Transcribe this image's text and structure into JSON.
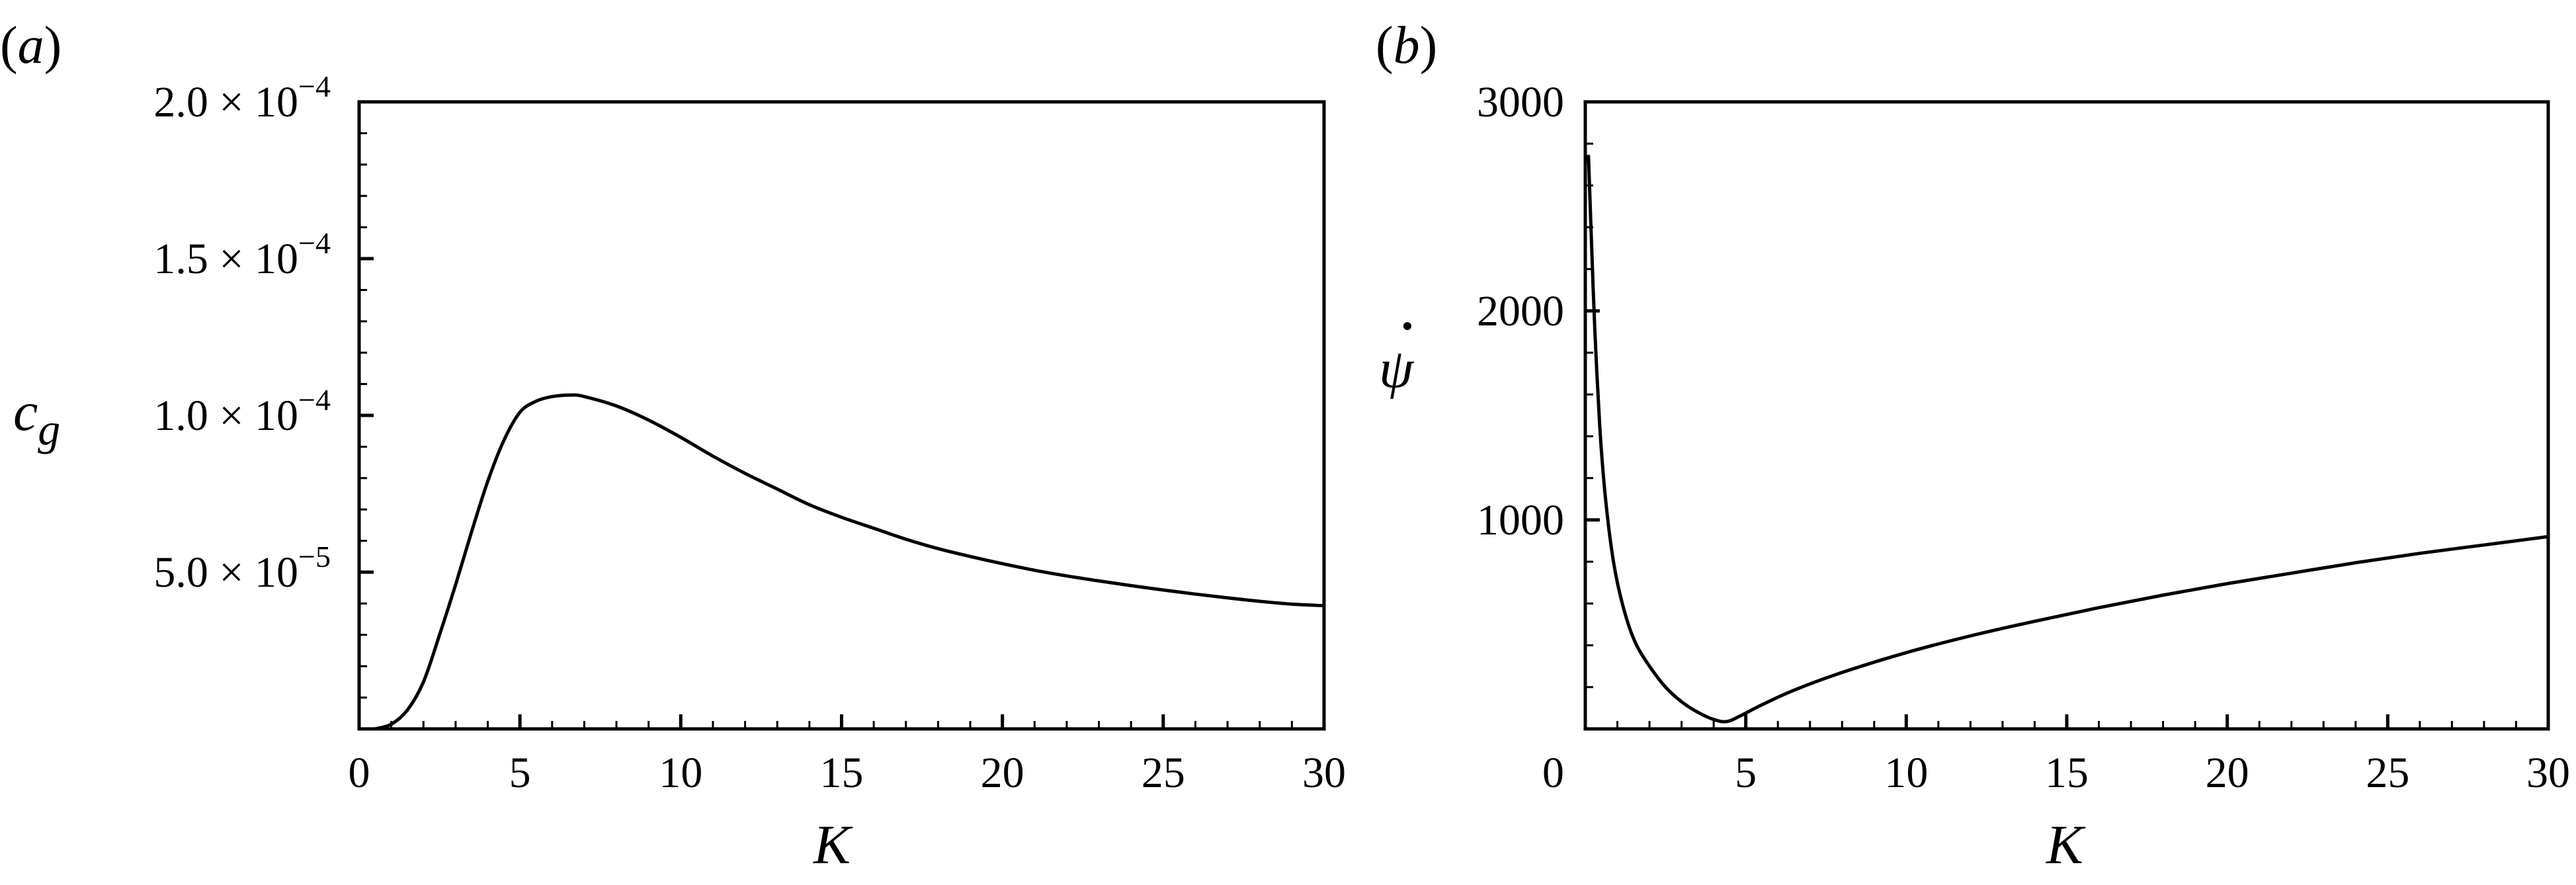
{
  "figure": {
    "panels": [
      {
        "label": "(a)",
        "label_letter": "a",
        "ylabel": "c",
        "ylabel_sub": "g",
        "xlabel": "K",
        "xticks": [
          "0",
          "5",
          "10",
          "15",
          "20",
          "25",
          "30"
        ],
        "yticks": [
          {
            "mant": "5.0",
            "exp": "−5"
          },
          {
            "mant": "1.0",
            "exp": "−4"
          },
          {
            "mant": "1.5",
            "exp": "−4"
          },
          {
            "mant": "2.0",
            "exp": "−4"
          }
        ]
      },
      {
        "label": "(b)",
        "label_letter": "b",
        "ylabel": "ψ",
        "xlabel": "K",
        "xticks": [
          "0",
          "5",
          "10",
          "15",
          "20",
          "25",
          "30"
        ],
        "yticks": [
          "1000",
          "2000",
          "3000"
        ],
        "y_zero_label": "0"
      }
    ]
  },
  "chart_data": [
    {
      "type": "line",
      "panel": "(a)",
      "title": "",
      "xlabel": "K",
      "ylabel": "c_g",
      "xlim": [
        0,
        30
      ],
      "ylim": [
        0,
        0.0002
      ],
      "xticks": [
        0,
        5,
        10,
        15,
        20,
        25,
        30
      ],
      "yticks": [
        5e-05,
        0.0001,
        0.00015,
        0.0002
      ],
      "grid": false,
      "legend": null,
      "series": [
        {
          "name": "c_g",
          "x": [
            0.5,
            1,
            1.5,
            2,
            2.5,
            3,
            3.5,
            4,
            4.5,
            5,
            5.5,
            6,
            6.6,
            7,
            8,
            9,
            10,
            11,
            12,
            13,
            14,
            15,
            16,
            17,
            18,
            19,
            20,
            21,
            22,
            23,
            24,
            25,
            26,
            27,
            28,
            29,
            30
          ],
          "y": [
            0.0,
            1.5e-06,
            6e-06,
            1.5e-05,
            3e-05,
            4.6e-05,
            6.3e-05,
            7.9e-05,
            9.2e-05,
            0.000101,
            0.0001045,
            0.000106,
            0.0001065,
            0.000106,
            0.000103,
            9.85e-05,
            9.3e-05,
            8.7e-05,
            8.15e-05,
            7.65e-05,
            7.15e-05,
            6.75e-05,
            6.4e-05,
            6.05e-05,
            5.75e-05,
            5.5e-05,
            5.27e-05,
            5.06e-05,
            4.88e-05,
            4.72e-05,
            4.57e-05,
            4.43e-05,
            4.3e-05,
            4.18e-05,
            4.07e-05,
            3.98e-05,
            3.93e-05
          ]
        }
      ]
    },
    {
      "type": "line",
      "panel": "(b)",
      "title": "",
      "xlabel": "K",
      "ylabel": "ψ̇ (psi-dot)",
      "xlim": [
        0,
        30
      ],
      "ylim": [
        0,
        3000
      ],
      "xticks": [
        0,
        5,
        10,
        15,
        20,
        25,
        30
      ],
      "yticks": [
        0,
        1000,
        2000,
        3000
      ],
      "grid": false,
      "legend": null,
      "series": [
        {
          "name": "psi_dot",
          "x": [
            0.1,
            0.2,
            0.3,
            0.45,
            0.6,
            0.8,
            1.0,
            1.3,
            1.6,
            2.0,
            2.5,
            3.0,
            3.5,
            4.0,
            4.4,
            4.8,
            5.5,
            6.5,
            8,
            10,
            12,
            14,
            16,
            18,
            20,
            22,
            24,
            26,
            28,
            30
          ],
          "y": [
            2740,
            2300,
            1900,
            1450,
            1150,
            880,
            700,
            520,
            400,
            300,
            200,
            130,
            80,
            45,
            35,
            60,
            115,
            185,
            270,
            365,
            445,
            515,
            580,
            640,
            695,
            745,
            795,
            840,
            880,
            920
          ]
        }
      ]
    }
  ]
}
